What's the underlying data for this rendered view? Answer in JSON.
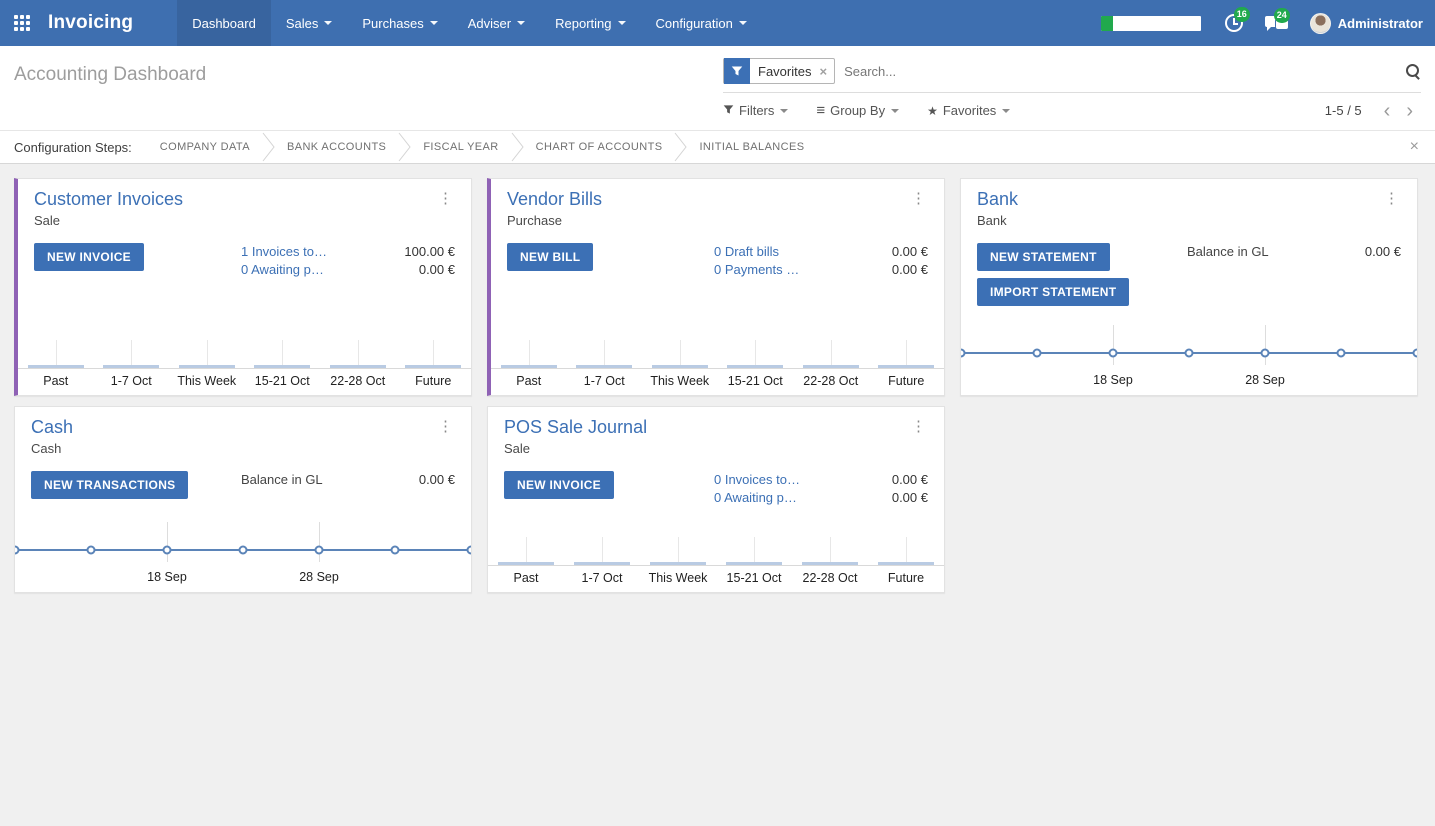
{
  "app": {
    "name": "Invoicing"
  },
  "nav": {
    "items": [
      {
        "label": "Dashboard",
        "active": true,
        "caret": false
      },
      {
        "label": "Sales",
        "active": false,
        "caret": true
      },
      {
        "label": "Purchases",
        "active": false,
        "caret": true
      },
      {
        "label": "Adviser",
        "active": false,
        "caret": true
      },
      {
        "label": "Reporting",
        "active": false,
        "caret": true
      },
      {
        "label": "Configuration",
        "active": false,
        "caret": true
      }
    ]
  },
  "topbar": {
    "progress_percent": 12,
    "activity_count": "16",
    "message_count": "24",
    "user": "Administrator"
  },
  "control_panel": {
    "title": "Accounting Dashboard",
    "facet_label": "Favorites",
    "search_placeholder": "Search...",
    "filters_label": "Filters",
    "groupby_label": "Group By",
    "favorites_label": "Favorites",
    "pager": {
      "value": "1-5 / 5",
      "prev": "‹",
      "next": "›"
    }
  },
  "config_steps": {
    "label": "Configuration Steps:",
    "steps": [
      "COMPANY DATA",
      "BANK ACCOUNTS",
      "FISCAL YEAR",
      "CHART OF ACCOUNTS",
      "INITIAL BALANCES"
    ]
  },
  "colors": {
    "accent": "#3c70b5",
    "header": "#3e6fb0",
    "header_active": "#38649f",
    "stripe_purple": "#8f62b5",
    "badge_green": "#21a94d",
    "chart_line": "#5b84b8",
    "bar_fill": "#b9cbe3"
  },
  "cards": [
    {
      "title": "Customer Invoices",
      "subtitle": "Sale",
      "stripe": true,
      "buttons": [
        "NEW INVOICE"
      ],
      "rows": [
        {
          "link": "1 Invoices to…",
          "amount": "100.00 €"
        },
        {
          "link": "0 Awaiting p…",
          "amount": "0.00 €"
        }
      ],
      "chart_data": {
        "type": "bar",
        "categories": [
          "Past",
          "1-7 Oct",
          "This Week",
          "15-21 Oct",
          "22-28 Oct",
          "Future"
        ],
        "values": [
          0,
          0,
          0,
          0,
          0,
          0
        ]
      }
    },
    {
      "title": "Vendor Bills",
      "subtitle": "Purchase",
      "stripe": true,
      "buttons": [
        "NEW BILL"
      ],
      "rows": [
        {
          "link": "0 Draft bills",
          "amount": "0.00 €"
        },
        {
          "link": "0 Payments …",
          "amount": "0.00 €"
        }
      ],
      "chart_data": {
        "type": "bar",
        "categories": [
          "Past",
          "1-7 Oct",
          "This Week",
          "15-21 Oct",
          "22-28 Oct",
          "Future"
        ],
        "values": [
          0,
          0,
          0,
          0,
          0,
          0
        ]
      }
    },
    {
      "title": "Bank",
      "subtitle": "Bank",
      "stripe": false,
      "buttons": [
        "NEW STATEMENT",
        "IMPORT STATEMENT"
      ],
      "balance": {
        "label": "Balance in GL",
        "amount": "0.00 €"
      },
      "chart_data": {
        "type": "line",
        "tick_labels": [
          "18 Sep",
          "28 Sep"
        ],
        "tick_positions": [
          0.3333,
          0.6667
        ],
        "values": [
          0,
          0,
          0,
          0,
          0,
          0,
          0
        ]
      }
    },
    {
      "title": "Cash",
      "subtitle": "Cash",
      "stripe": false,
      "buttons": [
        "NEW TRANSACTIONS"
      ],
      "balance": {
        "label": "Balance in GL",
        "amount": "0.00 €"
      },
      "chart_data": {
        "type": "line",
        "tick_labels": [
          "18 Sep",
          "28 Sep"
        ],
        "tick_positions": [
          0.3333,
          0.6667
        ],
        "values": [
          0,
          0,
          0,
          0,
          0,
          0,
          0
        ]
      }
    },
    {
      "title": "POS Sale Journal",
      "subtitle": "Sale",
      "stripe": false,
      "buttons": [
        "NEW INVOICE"
      ],
      "rows": [
        {
          "link": "0 Invoices to…",
          "amount": "0.00 €"
        },
        {
          "link": "0 Awaiting p…",
          "amount": "0.00 €"
        }
      ],
      "chart_data": {
        "type": "bar",
        "categories": [
          "Past",
          "1-7 Oct",
          "This Week",
          "15-21 Oct",
          "22-28 Oct",
          "Future"
        ],
        "values": [
          0,
          0,
          0,
          0,
          0,
          0
        ]
      }
    }
  ]
}
